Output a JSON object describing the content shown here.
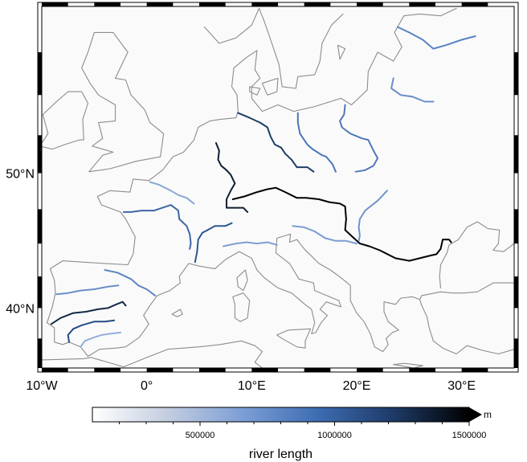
{
  "map": {
    "region": {
      "lon_min": -10,
      "lon_max": 35,
      "lat_min": 35,
      "lat_max": 60
    },
    "projection": "Mercator",
    "background_color": "#fafafa",
    "coastline_color": "#8c8c8c",
    "frame_style": "fancy (black/white checker border)",
    "x_ticks": [
      {
        "label": "10°W",
        "lon": -10
      },
      {
        "label": "0°",
        "lon": 0
      },
      {
        "label": "10°E",
        "lon": 10
      },
      {
        "label": "20°E",
        "lon": 20
      },
      {
        "label": "30°E",
        "lon": 30
      }
    ],
    "y_ticks": [
      {
        "label": "40°N",
        "lat": 40
      },
      {
        "label": "50°N",
        "lat": 50
      }
    ]
  },
  "rivers": [
    {
      "name_hint": "danube",
      "color": "#000000",
      "length_m": 2850000,
      "path": [
        [
          8.2,
          48.2
        ],
        [
          9.3,
          48.4
        ],
        [
          10.5,
          48.7
        ],
        [
          11.5,
          48.9
        ],
        [
          12.3,
          49.0
        ],
        [
          13.2,
          48.7
        ],
        [
          14.3,
          48.3
        ],
        [
          15.2,
          48.3
        ],
        [
          16.4,
          48.2
        ],
        [
          17.4,
          48.0
        ],
        [
          18.4,
          47.9
        ],
        [
          18.9,
          47.7
        ],
        [
          19.0,
          46.8
        ],
        [
          18.9,
          46.0
        ],
        [
          19.6,
          45.5
        ],
        [
          20.3,
          45.0
        ],
        [
          21.2,
          44.8
        ],
        [
          22.2,
          44.5
        ],
        [
          22.7,
          44.3
        ],
        [
          23.7,
          43.9
        ],
        [
          25.0,
          43.7
        ],
        [
          26.0,
          43.9
        ],
        [
          27.0,
          44.1
        ],
        [
          27.6,
          44.2
        ],
        [
          28.0,
          44.6
        ],
        [
          28.2,
          45.3
        ],
        [
          28.8,
          45.3
        ],
        [
          29.0,
          45.1
        ]
      ]
    },
    {
      "name_hint": "rhine",
      "color": "#0f1f33",
      "length_m": 1230000,
      "path": [
        [
          6.6,
          52.0
        ],
        [
          6.9,
          51.5
        ],
        [
          6.8,
          50.9
        ],
        [
          7.1,
          50.5
        ],
        [
          7.6,
          50.2
        ],
        [
          8.0,
          49.9
        ],
        [
          8.4,
          49.3
        ],
        [
          8.0,
          48.8
        ],
        [
          7.6,
          48.2
        ],
        [
          7.6,
          47.6
        ],
        [
          8.4,
          47.6
        ],
        [
          9.2,
          47.6
        ],
        [
          9.6,
          47.3
        ]
      ]
    },
    {
      "name_hint": "elbe",
      "color": "#1d3e66",
      "length_m": 1090000,
      "path": [
        [
          8.7,
          53.9
        ],
        [
          9.8,
          53.6
        ],
        [
          10.8,
          53.3
        ],
        [
          11.5,
          53.0
        ],
        [
          11.8,
          52.4
        ],
        [
          12.2,
          51.9
        ],
        [
          12.8,
          51.7
        ],
        [
          13.2,
          51.3
        ],
        [
          13.8,
          50.9
        ],
        [
          14.3,
          50.4
        ],
        [
          15.3,
          50.4
        ],
        [
          15.9,
          50.1
        ]
      ]
    },
    {
      "name_hint": "oder",
      "color": "#4a76b8",
      "length_m": 840000,
      "path": [
        [
          14.4,
          53.9
        ],
        [
          14.4,
          53.3
        ],
        [
          14.6,
          52.6
        ],
        [
          15.3,
          51.9
        ],
        [
          15.8,
          51.6
        ],
        [
          16.7,
          51.2
        ],
        [
          17.1,
          51.1
        ],
        [
          17.7,
          50.6
        ],
        [
          18.0,
          50.1
        ]
      ]
    },
    {
      "name_hint": "vistula",
      "color": "#4f79bb",
      "length_m": 1040000,
      "path": [
        [
          18.9,
          54.4
        ],
        [
          18.8,
          53.8
        ],
        [
          18.4,
          53.4
        ],
        [
          18.6,
          53.0
        ],
        [
          19.4,
          52.6
        ],
        [
          20.5,
          52.3
        ],
        [
          21.1,
          52.2
        ],
        [
          21.6,
          51.5
        ],
        [
          22.0,
          51.0
        ],
        [
          21.6,
          50.5
        ],
        [
          20.8,
          50.2
        ],
        [
          19.9,
          50.1
        ]
      ]
    },
    {
      "name_hint": "loire",
      "color": "#3c66a5",
      "length_m": 1006000,
      "path": [
        [
          -2.2,
          47.3
        ],
        [
          -1.5,
          47.3
        ],
        [
          -0.5,
          47.4
        ],
        [
          0.7,
          47.4
        ],
        [
          1.5,
          47.6
        ],
        [
          2.3,
          47.8
        ],
        [
          3.0,
          47.4
        ],
        [
          3.1,
          46.8
        ],
        [
          3.8,
          46.3
        ],
        [
          4.1,
          45.7
        ],
        [
          4.2,
          45.0
        ],
        [
          4.1,
          44.6
        ]
      ]
    },
    {
      "name_hint": "seine",
      "color": "#8aa7d7",
      "length_m": 780000,
      "path": [
        [
          0.3,
          49.4
        ],
        [
          1.2,
          49.2
        ],
        [
          2.3,
          48.8
        ],
        [
          3.0,
          48.5
        ],
        [
          3.8,
          48.3
        ],
        [
          4.5,
          47.9
        ]
      ]
    },
    {
      "name_hint": "rhone",
      "color": "#2d5792",
      "length_m": 810000,
      "path": [
        [
          4.6,
          43.6
        ],
        [
          4.8,
          44.4
        ],
        [
          4.9,
          45.3
        ],
        [
          5.3,
          45.8
        ],
        [
          5.8,
          46.0
        ],
        [
          6.5,
          46.3
        ],
        [
          7.5,
          46.3
        ],
        [
          8.1,
          46.5
        ]
      ]
    },
    {
      "name_hint": "po",
      "color": "#7e9fd3",
      "length_m": 652000,
      "path": [
        [
          7.3,
          44.8
        ],
        [
          8.5,
          45.0
        ],
        [
          9.5,
          45.1
        ],
        [
          10.5,
          45.0
        ],
        [
          11.5,
          45.1
        ],
        [
          12.4,
          44.9
        ]
      ]
    },
    {
      "name_hint": "drava-sava",
      "color": "#7b9cd1",
      "length_m": 940000,
      "path": [
        [
          13.9,
          46.3
        ],
        [
          15.0,
          46.2
        ],
        [
          16.0,
          45.9
        ],
        [
          17.0,
          45.4
        ],
        [
          18.0,
          45.2
        ],
        [
          19.0,
          45.2
        ],
        [
          20.0,
          45.0
        ]
      ]
    },
    {
      "name_hint": "tisza",
      "color": "#6f93cc",
      "length_m": 966000,
      "path": [
        [
          22.9,
          48.8
        ],
        [
          22.0,
          48.1
        ],
        [
          21.3,
          47.7
        ],
        [
          20.8,
          47.4
        ],
        [
          20.3,
          46.8
        ],
        [
          20.2,
          46.2
        ],
        [
          20.3,
          45.6
        ],
        [
          20.2,
          45.2
        ]
      ]
    },
    {
      "name_hint": "neman",
      "color": "#6a8fc9",
      "length_m": 937000,
      "path": [
        [
          23.5,
          56.0
        ],
        [
          23.3,
          55.4
        ],
        [
          24.2,
          55.0
        ],
        [
          25.3,
          54.9
        ],
        [
          26.5,
          54.6
        ],
        [
          27.3,
          54.6
        ]
      ]
    },
    {
      "name_hint": "daugava",
      "color": "#5a83c3",
      "length_m": 1020000,
      "path": [
        [
          23.9,
          58.9
        ],
        [
          25.0,
          58.6
        ],
        [
          26.3,
          58.2
        ],
        [
          27.3,
          57.7
        ],
        [
          28.5,
          57.9
        ],
        [
          30.0,
          58.2
        ],
        [
          31.3,
          58.4
        ]
      ]
    },
    {
      "name_hint": "ebro",
      "color": "#5d85c4",
      "length_m": 930000,
      "path": [
        [
          -4.0,
          43.0
        ],
        [
          -2.8,
          42.8
        ],
        [
          -1.5,
          42.3
        ],
        [
          -0.8,
          41.8
        ],
        [
          0.0,
          41.5
        ],
        [
          0.8,
          41.0
        ]
      ]
    },
    {
      "name_hint": "douro",
      "color": "#6a8ec9",
      "length_m": 897000,
      "path": [
        [
          -8.6,
          41.1
        ],
        [
          -7.5,
          41.2
        ],
        [
          -6.3,
          41.4
        ],
        [
          -5.0,
          41.5
        ],
        [
          -3.7,
          41.7
        ],
        [
          -2.7,
          41.8
        ]
      ]
    },
    {
      "name_hint": "tagus",
      "color": "#152a45",
      "length_m": 1007000,
      "path": [
        [
          -9.1,
          38.7
        ],
        [
          -8.2,
          39.2
        ],
        [
          -7.0,
          39.6
        ],
        [
          -5.8,
          39.7
        ],
        [
          -4.7,
          39.9
        ],
        [
          -3.7,
          40.0
        ],
        [
          -2.9,
          40.3
        ],
        [
          -2.3,
          40.5
        ],
        [
          -2.0,
          40.2
        ]
      ]
    },
    {
      "name_hint": "guadiana",
      "color": "#244c86",
      "length_m": 829000,
      "path": [
        [
          -7.4,
          37.2
        ],
        [
          -7.5,
          37.8
        ],
        [
          -7.0,
          38.3
        ],
        [
          -6.2,
          38.6
        ],
        [
          -5.0,
          38.9
        ],
        [
          -4.0,
          38.9
        ],
        [
          -3.1,
          39.0
        ]
      ]
    },
    {
      "name_hint": "guadalquivir",
      "color": "#94aed9",
      "length_m": 657000,
      "path": [
        [
          -6.3,
          36.8
        ],
        [
          -5.9,
          37.3
        ],
        [
          -5.0,
          37.6
        ],
        [
          -4.3,
          37.8
        ],
        [
          -3.5,
          37.9
        ],
        [
          -2.5,
          38.0
        ]
      ]
    }
  ],
  "colorbar": {
    "title": "river length",
    "unit": "m",
    "min": 100000,
    "max": 1500000,
    "labels": [
      "500000",
      "1000000",
      "1500000"
    ],
    "label_values": [
      500000,
      1000000,
      1500000
    ],
    "extends": "max",
    "colormap": [
      "#ffffff",
      "#c3cde0",
      "#7c9ed6",
      "#3d6cb2",
      "#1e3a66",
      "#000000"
    ]
  }
}
